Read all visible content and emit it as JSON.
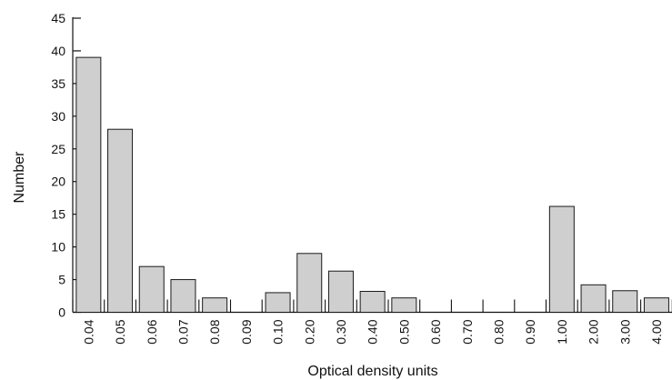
{
  "chart_data": {
    "type": "bar",
    "title": "",
    "xlabel": "Optical density units",
    "ylabel": "Number",
    "categories": [
      "0.04",
      "0.05",
      "0.06",
      "0.07",
      "0.08",
      "0.09",
      "0.10",
      "0.20",
      "0.30",
      "0.40",
      "0.50",
      "0.60",
      "0.70",
      "0.80",
      "0.90",
      "1.00",
      "2.00",
      "3.00",
      "4.00"
    ],
    "values": [
      39,
      28,
      7,
      5,
      2.2,
      0,
      3,
      9,
      6.3,
      3.2,
      2.2,
      0,
      0,
      0,
      0,
      16.2,
      4.2,
      3.3,
      2.2
    ],
    "ylim": [
      0,
      45
    ],
    "yticks": [
      0,
      5,
      10,
      15,
      20,
      25,
      30,
      35,
      40,
      45
    ],
    "grid": false,
    "bar_color": "#cfcfcf",
    "edge_color": "#1a1a1a"
  }
}
